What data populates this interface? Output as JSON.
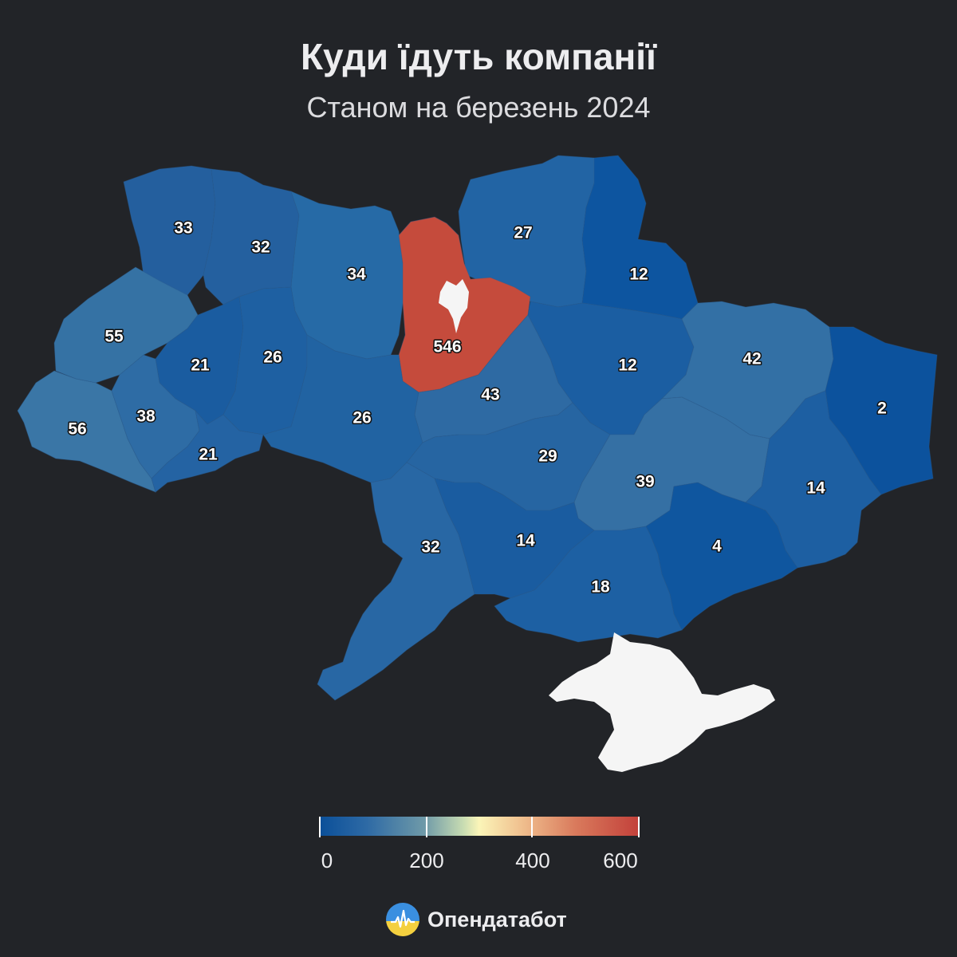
{
  "title": "Куди їдуть компанії",
  "subtitle": "Станом на березень 2024",
  "brand": {
    "name": "Опендатабот",
    "logo_icon": "opendatabot-logo-icon"
  },
  "legend": {
    "ticks": [
      "0",
      "200",
      "400",
      "600"
    ],
    "range": [
      0,
      600
    ],
    "colors": [
      "#0a4f99",
      "#6f9aa8",
      "#fbf5b8",
      "#c2403a"
    ]
  },
  "map_data": {
    "type": "choropleth",
    "regions": [
      {
        "id": "volyn",
        "value": "33"
      },
      {
        "id": "rivne",
        "value": "32"
      },
      {
        "id": "zhytomyr",
        "value": "34"
      },
      {
        "id": "chernihiv",
        "value": "27"
      },
      {
        "id": "sumy",
        "value": "12"
      },
      {
        "id": "lviv",
        "value": "55"
      },
      {
        "id": "ternopil",
        "value": "21"
      },
      {
        "id": "khmelnytskyi",
        "value": "26"
      },
      {
        "id": "kyiv-oblast",
        "value": "546"
      },
      {
        "id": "poltava",
        "value": "12"
      },
      {
        "id": "kharkiv",
        "value": "42"
      },
      {
        "id": "luhansk",
        "value": "2"
      },
      {
        "id": "zakarpattia",
        "value": "56"
      },
      {
        "id": "ivano-frankivsk",
        "value": "38"
      },
      {
        "id": "chernivtsi",
        "value": "21"
      },
      {
        "id": "vinnytsia",
        "value": "26"
      },
      {
        "id": "cherkasy",
        "value": "43"
      },
      {
        "id": "kirovohrad",
        "value": "29"
      },
      {
        "id": "dnipropetrovsk",
        "value": "39"
      },
      {
        "id": "donetsk",
        "value": "14"
      },
      {
        "id": "odesa",
        "value": "32"
      },
      {
        "id": "mykolaiv",
        "value": "14"
      },
      {
        "id": "zaporizhzhia",
        "value": "4"
      },
      {
        "id": "kherson",
        "value": "18"
      }
    ]
  }
}
